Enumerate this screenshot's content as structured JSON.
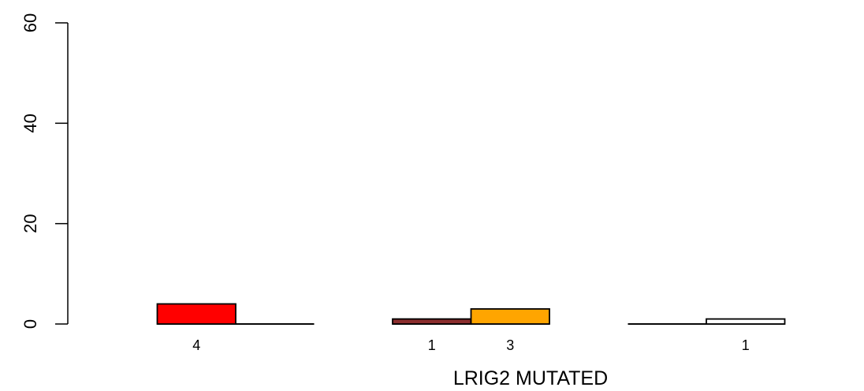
{
  "chart_data": {
    "type": "bar",
    "xlabel": "LRIG2 MUTATED",
    "ylabel": "",
    "ylim": [
      0,
      60
    ],
    "yticks": [
      0,
      20,
      40,
      60
    ],
    "grid": false,
    "legend": "none",
    "bars": [
      {
        "group": 1,
        "value": 4,
        "color": "#ff0000",
        "label": "4"
      },
      {
        "group": 1,
        "value": 0,
        "color": "#000000",
        "label": ""
      },
      {
        "group": 2,
        "value": 1,
        "color": "#8b2e2e",
        "label": "1"
      },
      {
        "group": 2,
        "value": 3,
        "color": "#ffa500",
        "label": "3"
      },
      {
        "group": 3,
        "value": 0,
        "color": "#000000",
        "label": ""
      },
      {
        "group": 3,
        "value": 1,
        "color": "#ffffff",
        "label": "1"
      }
    ]
  }
}
